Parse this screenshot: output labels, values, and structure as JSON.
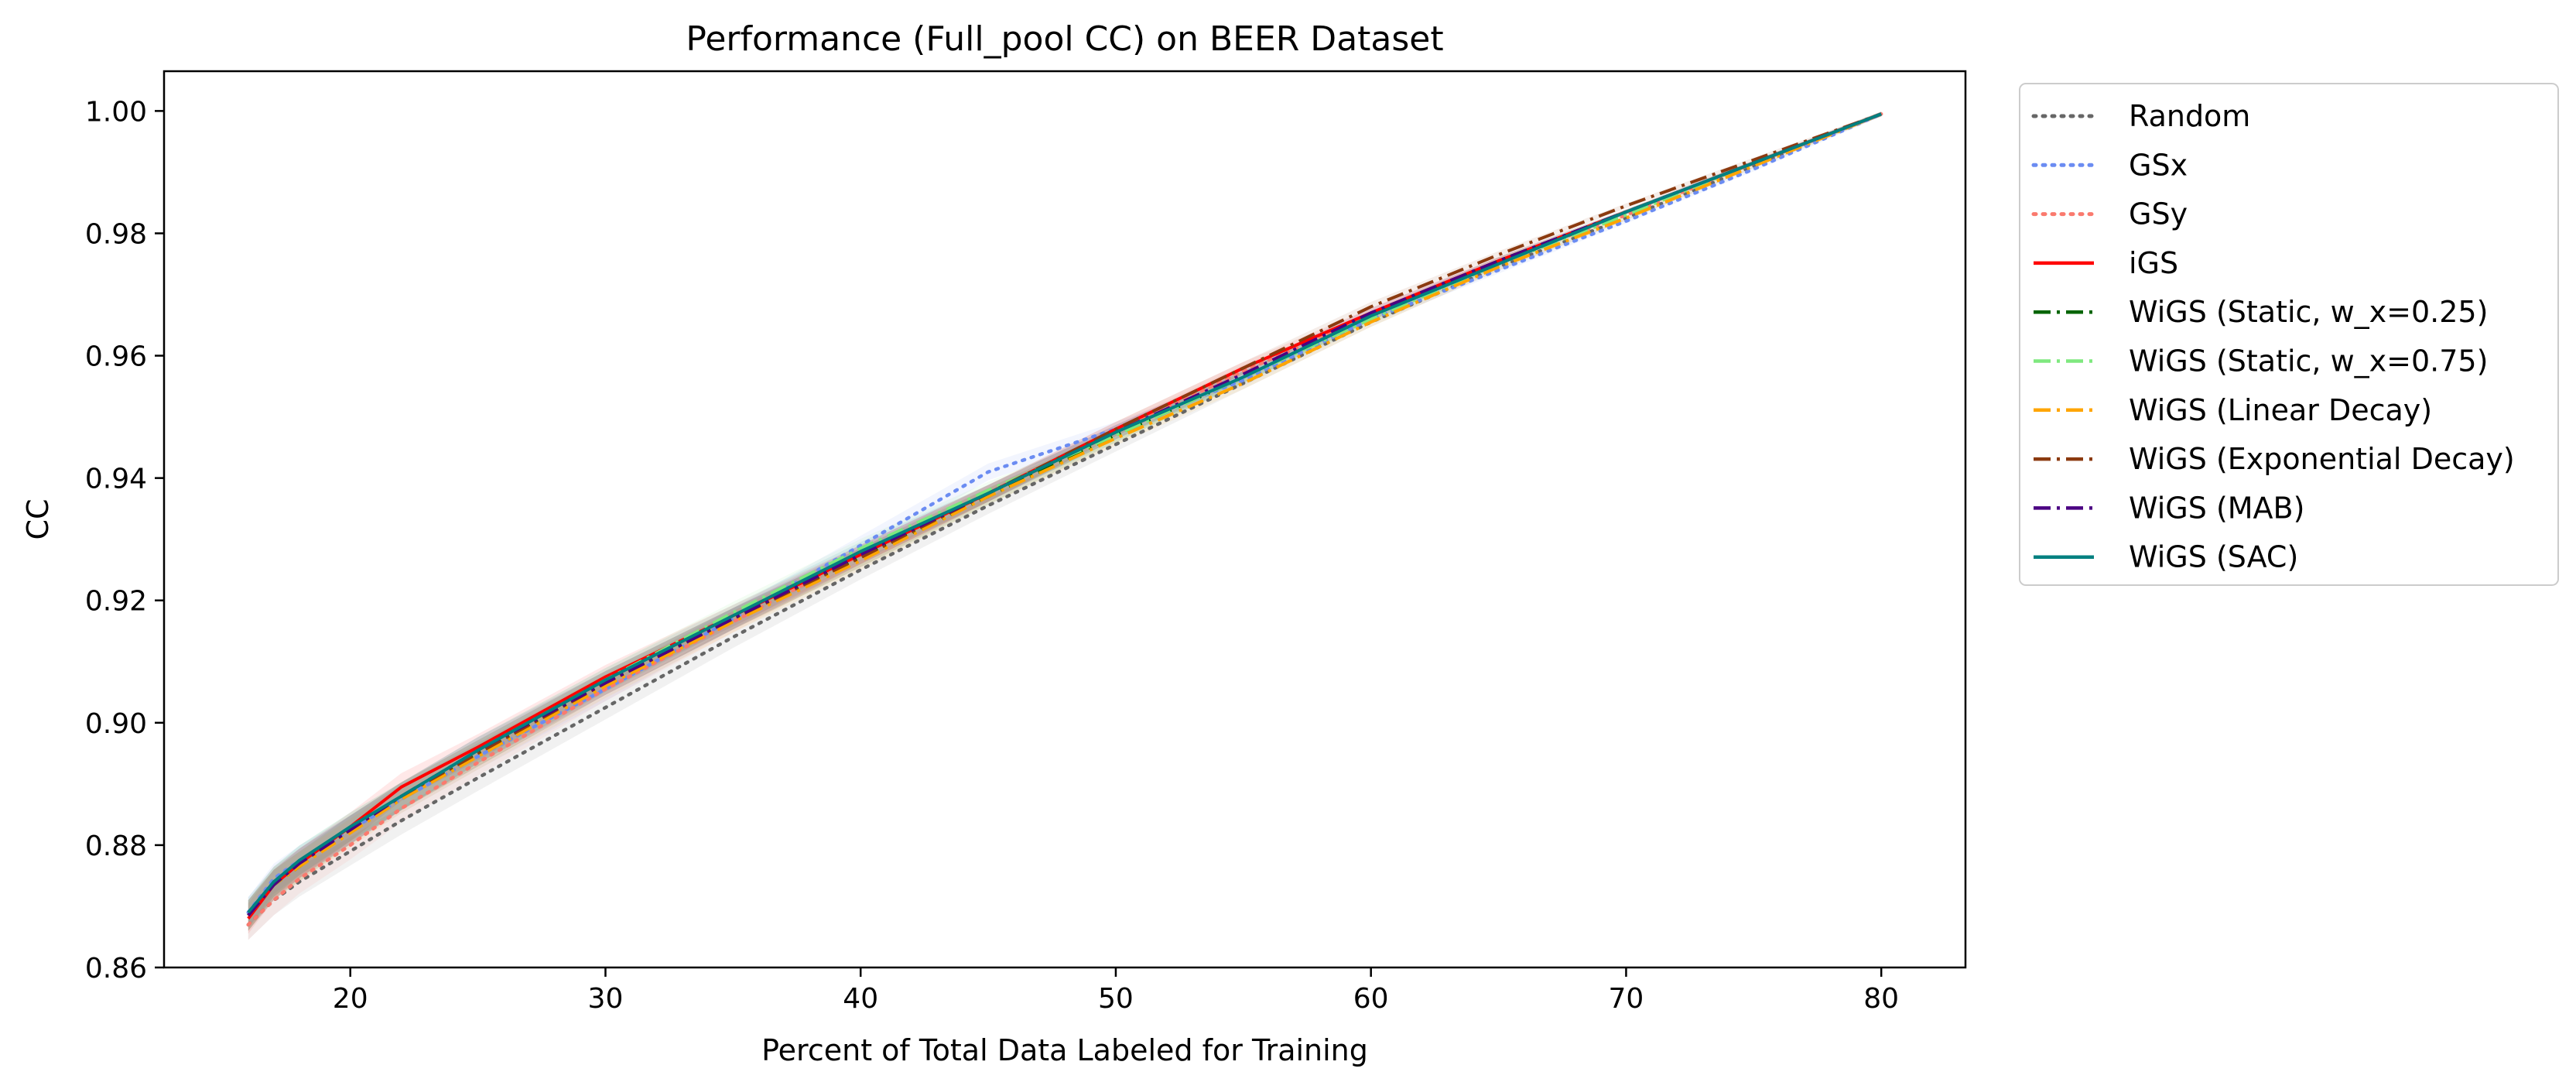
{
  "chart_data": {
    "type": "line",
    "title": "Performance (Full_pool CC) on BEER Dataset",
    "xlabel": "Percent of Total Data Labeled for Training",
    "ylabel": "CC",
    "xlim": [
      12.7,
      83.3
    ],
    "ylim": [
      0.86,
      1.0065
    ],
    "x_ticks": [
      20,
      30,
      40,
      50,
      60,
      70,
      80
    ],
    "x_tick_labels": [
      "20",
      "30",
      "40",
      "50",
      "60",
      "70",
      "80"
    ],
    "y_ticks": [
      0.86,
      0.88,
      0.9,
      0.92,
      0.94,
      0.96,
      0.98,
      1.0
    ],
    "y_tick_labels": [
      "0.86",
      "0.88",
      "0.90",
      "0.92",
      "0.94",
      "0.96",
      "0.98",
      "1.00"
    ],
    "grid": false,
    "legend_position": "outside-right",
    "x": [
      16,
      17,
      18,
      20,
      22,
      25,
      30,
      35,
      40,
      45,
      50,
      55,
      60,
      65,
      70,
      75,
      80
    ],
    "series": [
      {
        "name": "Random",
        "color": "#666666",
        "style": "dotted",
        "values": [
          0.867,
          0.871,
          0.874,
          0.879,
          0.884,
          0.891,
          0.9025,
          0.914,
          0.925,
          0.9355,
          0.9455,
          0.9555,
          0.9655,
          0.9745,
          0.9825,
          0.991,
          0.9995
        ]
      },
      {
        "name": "GSx",
        "color": "#6b8cf2",
        "style": "dotted",
        "values": [
          0.869,
          0.8745,
          0.8775,
          0.8825,
          0.8875,
          0.8945,
          0.9055,
          0.917,
          0.929,
          0.941,
          0.948,
          0.956,
          0.966,
          0.974,
          0.982,
          0.9905,
          0.9995
        ]
      },
      {
        "name": "GSy",
        "color": "#fa7a6e",
        "style": "dotted",
        "values": [
          0.867,
          0.871,
          0.8745,
          0.88,
          0.886,
          0.8935,
          0.9055,
          0.9165,
          0.9275,
          0.9375,
          0.9475,
          0.9575,
          0.9665,
          0.9755,
          0.983,
          0.9915,
          0.9995
        ]
      },
      {
        "name": "iGS",
        "color": "#ff0000",
        "style": "solid",
        "values": [
          0.868,
          0.8735,
          0.877,
          0.883,
          0.8895,
          0.896,
          0.9075,
          0.9175,
          0.9275,
          0.9375,
          0.948,
          0.958,
          0.967,
          0.9755,
          0.9835,
          0.9915,
          0.9995
        ]
      },
      {
        "name": "WiGS (Static, w_x=0.25)",
        "color": "#006400",
        "style": "dashdot",
        "values": [
          0.8685,
          0.8735,
          0.8765,
          0.8825,
          0.888,
          0.895,
          0.9065,
          0.917,
          0.927,
          0.937,
          0.947,
          0.9565,
          0.9665,
          0.9755,
          0.9835,
          0.9915,
          0.9995
        ]
      },
      {
        "name": "WiGS (Static, w_x=0.75)",
        "color": "#7fe87f",
        "style": "dashdot",
        "values": [
          0.8685,
          0.874,
          0.8775,
          0.883,
          0.888,
          0.8955,
          0.907,
          0.918,
          0.9285,
          0.938,
          0.947,
          0.9565,
          0.966,
          0.975,
          0.983,
          0.9915,
          0.9995
        ]
      },
      {
        "name": "WiGS (Linear Decay)",
        "color": "#ffa500",
        "style": "dashdot",
        "values": [
          0.8685,
          0.8735,
          0.8765,
          0.882,
          0.8875,
          0.8945,
          0.906,
          0.9165,
          0.9265,
          0.937,
          0.9465,
          0.9555,
          0.9655,
          0.9745,
          0.9825,
          0.991,
          0.9995
        ]
      },
      {
        "name": "WiGS (Exponential Decay)",
        "color": "#8b3a0f",
        "style": "dashdot",
        "values": [
          0.8685,
          0.874,
          0.877,
          0.8825,
          0.888,
          0.895,
          0.9065,
          0.917,
          0.927,
          0.9375,
          0.948,
          0.958,
          0.968,
          0.9765,
          0.9845,
          0.992,
          0.9995
        ]
      },
      {
        "name": "WiGS (MAB)",
        "color": "#4b0082",
        "style": "dashdot",
        "values": [
          0.8685,
          0.8735,
          0.877,
          0.8825,
          0.888,
          0.8955,
          0.9065,
          0.917,
          0.9275,
          0.9375,
          0.9475,
          0.957,
          0.967,
          0.9755,
          0.9835,
          0.9915,
          0.9995
        ]
      },
      {
        "name": "WiGS (SAC)",
        "color": "#008080",
        "style": "solid",
        "values": [
          0.869,
          0.874,
          0.8775,
          0.883,
          0.888,
          0.8955,
          0.907,
          0.9175,
          0.928,
          0.9375,
          0.9475,
          0.9565,
          0.9665,
          0.975,
          0.9835,
          0.9915,
          0.9995
        ]
      }
    ]
  }
}
